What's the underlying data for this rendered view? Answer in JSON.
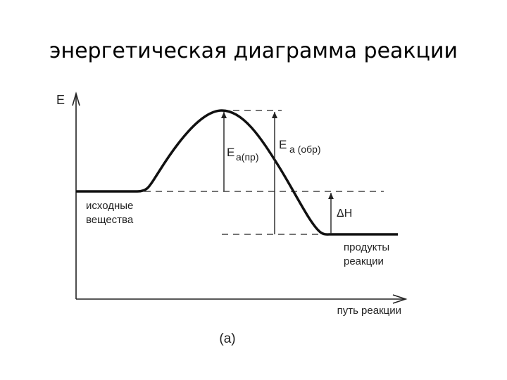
{
  "title": "энергетическая диаграмма реакции",
  "axes": {
    "y_label": "E",
    "x_label": "путь реакции"
  },
  "labels": {
    "ea_forward": {
      "main": "E",
      "sub": "а(пр)"
    },
    "ea_reverse": {
      "main": "E",
      "sub": "а (обр)"
    },
    "delta_h": "ΔH",
    "reactants": [
      "исходные",
      "вещества"
    ],
    "products": [
      "продукты",
      "реакции"
    ]
  },
  "caption": "(а)"
}
